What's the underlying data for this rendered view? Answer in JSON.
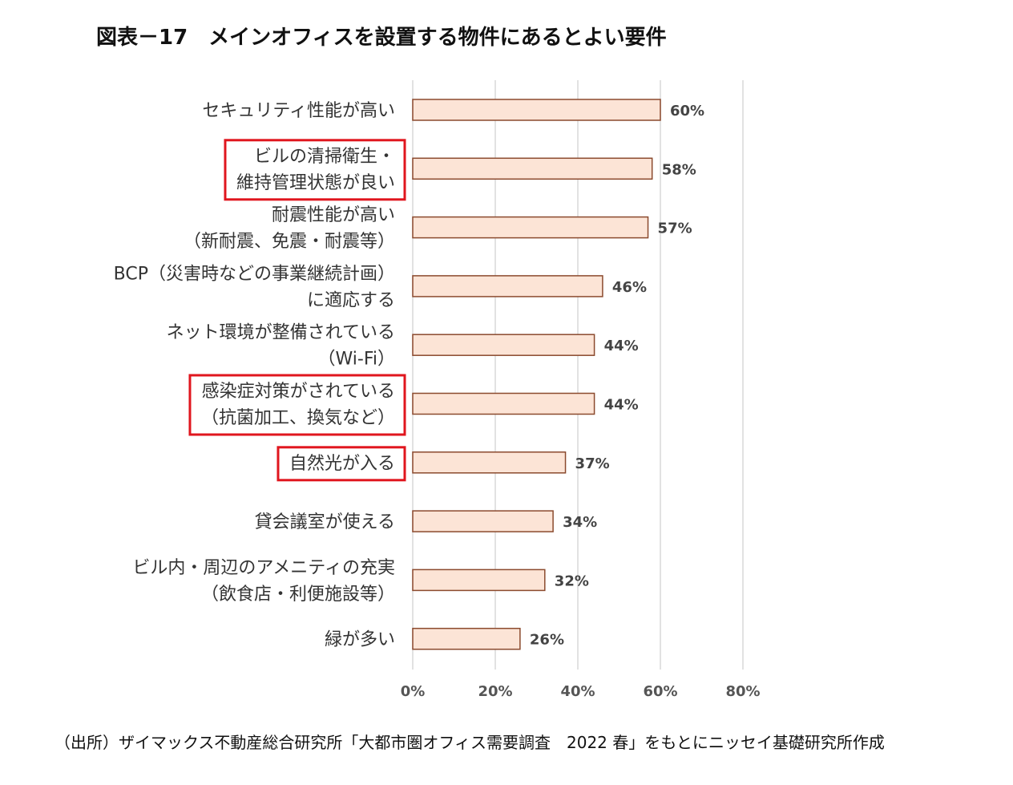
{
  "title": "図表－17　メインオフィスを設置する物件にあるとよい要件",
  "source": "（出所）ザイマックス不動産総合研究所「大都市圏オフィス需要調査　2022 春」をもとにニッセイ基礎研究所作成",
  "chart_data": {
    "type": "bar",
    "orientation": "horizontal",
    "categories": [
      [
        "セキュリティ性能が高い"
      ],
      [
        "ビルの清掃衛生・",
        "維持管理状態が良い"
      ],
      [
        "耐震性能が高い",
        "（新耐震、免震・耐震等）"
      ],
      [
        "BCP（災害時などの事業継続計画）",
        "に適応する"
      ],
      [
        "ネット環境が整備されている",
        "（Wi-Fi）"
      ],
      [
        "感染症対策がされている",
        "（抗菌加工、換気など）"
      ],
      [
        "自然光が入る"
      ],
      [
        "貸会議室が使える"
      ],
      [
        "ビル内・周辺のアメニティの充実",
        "（飲食店・利便施設等）"
      ],
      [
        "緑が多い"
      ]
    ],
    "values": [
      60,
      58,
      57,
      46,
      44,
      44,
      37,
      34,
      32,
      26
    ],
    "data_labels": [
      "60%",
      "58%",
      "57%",
      "46%",
      "44%",
      "44%",
      "37%",
      "34%",
      "32%",
      "26%"
    ],
    "xlim": [
      0,
      80
    ],
    "x_ticks": [
      0,
      20,
      40,
      60,
      80
    ],
    "x_tick_labels": [
      "0%",
      "20%",
      "40%",
      "60%",
      "80%"
    ],
    "highlighted_categories": [
      1,
      5,
      6
    ],
    "grid": "vertical",
    "bar_fill": "#fce4d6",
    "bar_stroke": "#8b4a2e",
    "highlight_color": "#e0161e",
    "grid_color": "#d9d9d9"
  }
}
